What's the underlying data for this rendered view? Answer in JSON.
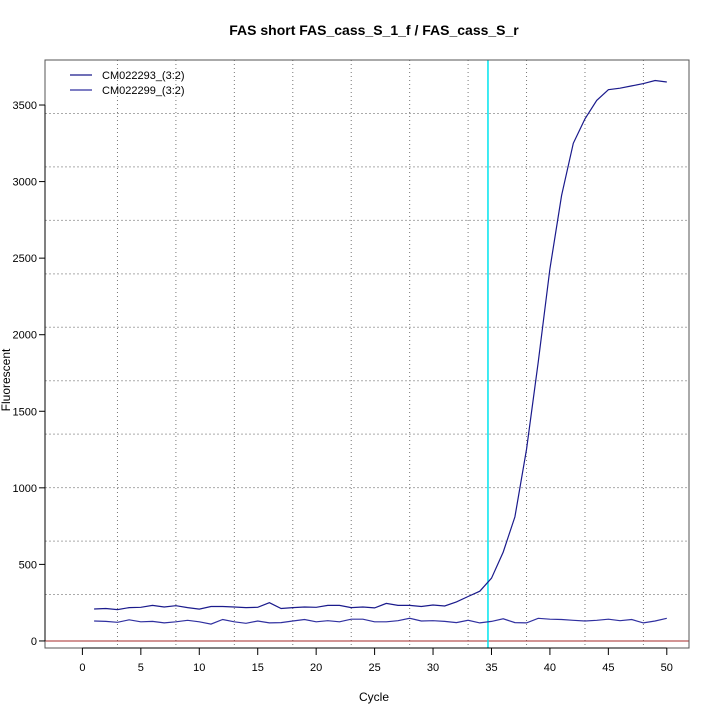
{
  "chart_data": {
    "type": "line",
    "title": "FAS short FAS_cass_S_1_f / FAS_cass_S_r",
    "xlabel": "Cycle",
    "ylabel": "Fluorescent",
    "xlim": [
      -3.2,
      51.9
    ],
    "ylim": [
      -46,
      3794
    ],
    "xticks": [
      0,
      5,
      10,
      15,
      20,
      25,
      30,
      35,
      40,
      45,
      50
    ],
    "yticks": [
      0,
      500,
      1000,
      1500,
      2000,
      2500,
      3000,
      3500
    ],
    "grid": true,
    "legend_position": "top-left",
    "threshold_cycle": 34.7,
    "threshold_color": "#00e5ee",
    "baseline_color": "#a52a2a",
    "x": [
      1,
      2,
      3,
      4,
      5,
      6,
      7,
      8,
      9,
      10,
      11,
      12,
      13,
      14,
      15,
      16,
      17,
      18,
      19,
      20,
      21,
      22,
      23,
      24,
      25,
      26,
      27,
      28,
      29,
      30,
      31,
      32,
      33,
      34,
      35,
      36,
      37,
      38,
      39,
      40,
      41,
      42,
      43,
      44,
      45,
      46,
      47,
      48,
      49,
      50
    ],
    "series": [
      {
        "name": "CM022293_(3:2)",
        "color": "#1a1a8c",
        "values": [
          209,
          212,
          205,
          218,
          220,
          232,
          222,
          230,
          218,
          208,
          225,
          225,
          222,
          218,
          220,
          250,
          212,
          218,
          222,
          220,
          232,
          232,
          218,
          222,
          216,
          245,
          232,
          232,
          225,
          235,
          228,
          255,
          290,
          325,
          410,
          580,
          810,
          1250,
          1820,
          2430,
          2910,
          3250,
          3410,
          3530,
          3600,
          3610,
          3625,
          3640,
          3660,
          3650
        ]
      },
      {
        "name": "CM022299_(3:2)",
        "color": "#3030a0",
        "values": [
          130,
          128,
          122,
          138,
          125,
          128,
          118,
          125,
          135,
          125,
          110,
          140,
          125,
          115,
          130,
          118,
          120,
          130,
          140,
          125,
          132,
          125,
          142,
          142,
          125,
          125,
          132,
          148,
          130,
          132,
          128,
          120,
          135,
          118,
          128,
          145,
          120,
          118,
          148,
          142,
          140,
          135,
          130,
          135,
          142,
          132,
          140,
          118,
          130,
          148
        ]
      }
    ]
  }
}
